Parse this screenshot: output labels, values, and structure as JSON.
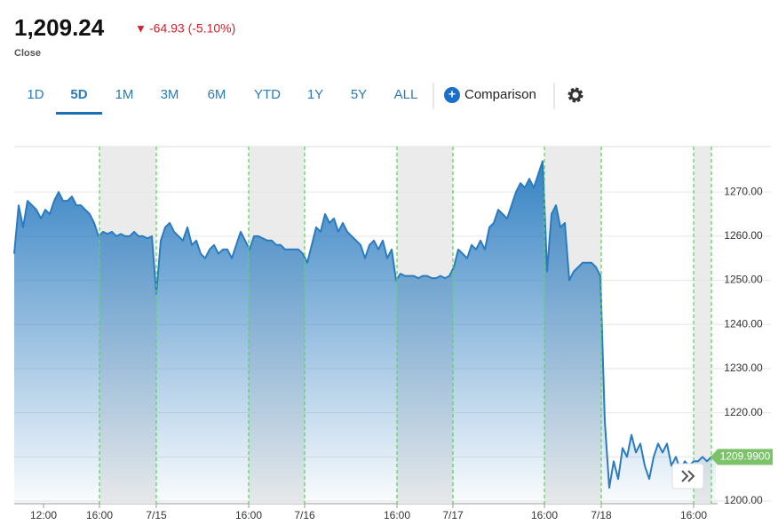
{
  "header": {
    "price": "1,209.24",
    "change": "-64.93 (-5.10%)",
    "status": "Close"
  },
  "tabs": [
    "1D",
    "5D",
    "1M",
    "3M",
    "6M",
    "YTD",
    "1Y",
    "5Y",
    "ALL"
  ],
  "active_tab": "5D",
  "comparison": "Comparison",
  "chart_data": {
    "type": "area",
    "x": [
      0,
      1,
      2,
      3,
      4,
      5,
      6,
      7,
      8,
      9,
      10,
      11,
      12,
      13,
      14,
      15,
      16,
      17,
      18,
      19,
      20,
      21,
      22,
      23,
      24,
      25,
      26,
      27,
      28,
      29,
      30,
      31,
      32,
      33,
      34,
      35,
      36,
      37,
      38,
      39,
      40,
      41,
      42,
      43,
      44,
      45,
      46,
      47,
      48,
      49,
      50,
      51,
      52,
      53,
      54,
      55,
      56,
      57,
      58,
      59,
      60,
      61,
      62,
      63,
      64,
      65,
      66,
      67,
      68,
      69,
      70,
      71,
      72,
      73,
      74,
      75,
      76,
      77,
      78,
      79,
      80,
      81,
      82,
      83,
      84,
      85,
      86,
      87,
      88,
      89,
      90,
      91,
      92,
      93,
      94,
      95,
      96,
      97,
      98,
      99,
      100,
      101,
      102,
      103,
      104,
      105,
      106,
      107,
      108,
      109,
      110,
      111,
      112,
      113,
      114,
      115,
      116,
      117,
      118,
      119,
      120,
      121,
      122,
      123,
      124,
      125,
      126,
      127,
      128,
      129,
      130,
      131,
      132,
      133,
      134,
      135,
      136,
      137,
      138,
      139,
      140,
      141,
      142,
      143,
      144,
      145,
      146,
      147,
      148,
      149,
      150,
      151,
      152,
      153,
      154,
      155,
      156,
      157,
      158
    ],
    "series": [
      {
        "color": "#2a7bc0",
        "values": [
          1256,
          1267,
          1262,
          1268,
          1267,
          1266,
          1264,
          1266,
          1265,
          1268,
          1270,
          1268,
          1268,
          1269,
          1267,
          1267,
          1266,
          1265,
          1263,
          1260,
          1261,
          1260.5,
          1261,
          1260,
          1260.5,
          1260,
          1260,
          1261,
          1260,
          1260,
          1259.5,
          1260,
          1247,
          1259,
          1262,
          1263,
          1261,
          1260,
          1259,
          1262,
          1258,
          1259,
          1256,
          1255,
          1257,
          1258,
          1256,
          1257,
          1257,
          1255,
          1258,
          1261,
          1259,
          1257,
          1260,
          1260,
          1259.5,
          1259,
          1259,
          1258,
          1258,
          1257,
          1257,
          1257,
          1257,
          1256,
          1254,
          1258,
          1262,
          1261,
          1265,
          1263,
          1264,
          1261,
          1263,
          1261,
          1260,
          1259,
          1258,
          1255,
          1258,
          1259,
          1257,
          1259,
          1255,
          1257,
          1250,
          1251.5,
          1251,
          1251,
          1251,
          1250.5,
          1251,
          1251,
          1250.5,
          1250.5,
          1251,
          1250.5,
          1251,
          1253,
          1257,
          1256,
          1255,
          1258,
          1257,
          1259,
          1257,
          1262,
          1263,
          1266,
          1265,
          1264,
          1267,
          1270,
          1272,
          1271,
          1273,
          1271,
          1274,
          1277,
          1252,
          1265,
          1267,
          1262,
          1263,
          1250,
          1252,
          1253,
          1254,
          1254,
          1254,
          1253,
          1251,
          1218,
          1203,
          1209,
          1205,
          1212,
          1210,
          1215,
          1211,
          1213,
          1208,
          1205,
          1210,
          1213,
          1211,
          1213,
          1208,
          1210,
          1207,
          1209,
          1208,
          1209,
          1209,
          1210,
          1209,
          1210,
          1210
        ]
      }
    ],
    "xlim": [
      0,
      158
    ],
    "xticks": [
      {
        "value": 6.6,
        "label": "12:00"
      },
      {
        "value": 19.2,
        "label": "16:00"
      },
      {
        "value": 32,
        "label": "7/15"
      },
      {
        "value": 52.8,
        "label": "16:00"
      },
      {
        "value": 65.4,
        "label": "7/16"
      },
      {
        "value": 86.2,
        "label": "16:00"
      },
      {
        "value": 98.8,
        "label": "7/17"
      },
      {
        "value": 119.4,
        "label": "16:00"
      },
      {
        "value": 132.2,
        "label": "7/18"
      },
      {
        "value": 153,
        "label": "16:00"
      }
    ],
    "ylim": [
      1199.4,
      1280.3
    ],
    "yticks": [
      {
        "value": 1200,
        "label": "1200.00"
      },
      {
        "value": 1210,
        "label": "1210.00"
      },
      {
        "value": 1220,
        "label": "1220.00"
      },
      {
        "value": 1230,
        "label": "1230.00"
      },
      {
        "value": 1240,
        "label": "1240.00"
      },
      {
        "value": 1250,
        "label": "1250.00"
      },
      {
        "value": 1260,
        "label": "1260.00"
      },
      {
        "value": 1270,
        "label": "1270.00"
      }
    ],
    "extended_hours": [
      [
        19.2,
        32
      ],
      [
        52.8,
        65.4
      ],
      [
        86.2,
        98.8
      ],
      [
        119.4,
        132.2
      ],
      [
        153,
        157
      ]
    ],
    "last_price": {
      "value": 1209.99,
      "label": "1209.9900"
    },
    "grid": true
  }
}
